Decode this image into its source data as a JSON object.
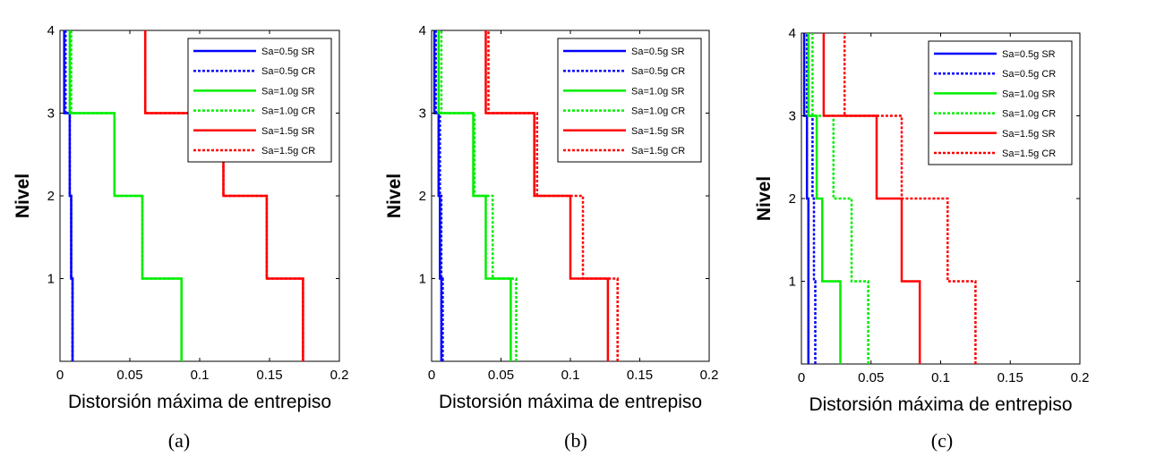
{
  "chart_data": [
    {
      "type": "line",
      "caption": "(a)",
      "xlabel": "Distorsión máxima de entrepiso",
      "ylabel": "Nivel",
      "xlim": [
        0,
        0.2
      ],
      "ylim": [
        0,
        4
      ],
      "xticks": [
        "0",
        "0.05",
        "0.1",
        "0.15",
        "0.2"
      ],
      "yticks": [
        "1",
        "2",
        "3",
        "4"
      ],
      "legend_position": "top-right",
      "series": [
        {
          "name": "Sa=0.5g SR",
          "color": "#0000ff",
          "dash": "solid",
          "values": [
            0.009,
            0.008,
            0.007,
            0.003
          ]
        },
        {
          "name": "Sa=0.5g CR",
          "color": "#0000ff",
          "dash": "dotted",
          "values": [
            0.009,
            0.008,
            0.007,
            0.004
          ]
        },
        {
          "name": "Sa=1.0g SR",
          "color": "#00ee00",
          "dash": "solid",
          "values": [
            0.087,
            0.059,
            0.039,
            0.007
          ]
        },
        {
          "name": "Sa=1.0g CR",
          "color": "#00ee00",
          "dash": "dotted",
          "values": [
            0.087,
            0.059,
            0.039,
            0.008
          ]
        },
        {
          "name": "Sa=1.5g SR",
          "color": "#ff0000",
          "dash": "solid",
          "values": [
            0.174,
            0.148,
            0.117,
            0.061
          ]
        },
        {
          "name": "Sa=1.5g CR",
          "color": "#ff0000",
          "dash": "dotted",
          "values": [
            0.174,
            0.148,
            0.117,
            0.061
          ]
        }
      ]
    },
    {
      "type": "line",
      "caption": "(b)",
      "xlabel": "Distorsión máxima de entrepiso",
      "ylabel": "Nivel",
      "xlim": [
        0,
        0.2
      ],
      "ylim": [
        0,
        4
      ],
      "xticks": [
        "0",
        "0.05",
        "0.1",
        "0.15",
        "0.2"
      ],
      "yticks": [
        "1",
        "2",
        "3",
        "4"
      ],
      "legend_position": "top-right",
      "series": [
        {
          "name": "Sa=0.5g SR",
          "color": "#0000ff",
          "dash": "solid",
          "values": [
            0.007,
            0.006,
            0.005,
            0.002
          ]
        },
        {
          "name": "Sa=0.5g CR",
          "color": "#0000ff",
          "dash": "dotted",
          "values": [
            0.008,
            0.007,
            0.006,
            0.003
          ]
        },
        {
          "name": "Sa=1.0g SR",
          "color": "#00ee00",
          "dash": "solid",
          "values": [
            0.057,
            0.039,
            0.03,
            0.005
          ]
        },
        {
          "name": "Sa=1.0g CR",
          "color": "#00ee00",
          "dash": "dotted",
          "values": [
            0.061,
            0.044,
            0.031,
            0.007
          ]
        },
        {
          "name": "Sa=1.5g SR",
          "color": "#ff0000",
          "dash": "solid",
          "values": [
            0.127,
            0.1,
            0.074,
            0.039
          ]
        },
        {
          "name": "Sa=1.5g CR",
          "color": "#ff0000",
          "dash": "dotted",
          "values": [
            0.134,
            0.109,
            0.076,
            0.041
          ]
        }
      ]
    },
    {
      "type": "line",
      "caption": "(c)",
      "xlabel": "Distorsión máxima de entrepiso",
      "ylabel": "Nivel",
      "xlim": [
        0,
        0.2
      ],
      "ylim": [
        0,
        4
      ],
      "xticks": [
        "0",
        "0.05",
        "0.1",
        "0.15",
        "0.2"
      ],
      "yticks": [
        "1",
        "2",
        "3",
        "4"
      ],
      "legend_position": "top-right",
      "series": [
        {
          "name": "Sa=0.5g SR",
          "color": "#0000ff",
          "dash": "solid",
          "values": [
            0.005,
            0.005,
            0.004,
            0.002
          ]
        },
        {
          "name": "Sa=0.5g CR",
          "color": "#0000ff",
          "dash": "dotted",
          "values": [
            0.01,
            0.009,
            0.008,
            0.004
          ]
        },
        {
          "name": "Sa=1.0g SR",
          "color": "#00ee00",
          "dash": "solid",
          "values": [
            0.028,
            0.015,
            0.011,
            0.005
          ]
        },
        {
          "name": "Sa=1.0g CR",
          "color": "#00ee00",
          "dash": "dotted",
          "values": [
            0.048,
            0.036,
            0.023,
            0.008
          ]
        },
        {
          "name": "Sa=1.5g SR",
          "color": "#ff0000",
          "dash": "solid",
          "values": [
            0.085,
            0.072,
            0.054,
            0.016
          ]
        },
        {
          "name": "Sa=1.5g CR",
          "color": "#ff0000",
          "dash": "dotted",
          "values": [
            0.125,
            0.105,
            0.072,
            0.031
          ]
        }
      ]
    }
  ]
}
